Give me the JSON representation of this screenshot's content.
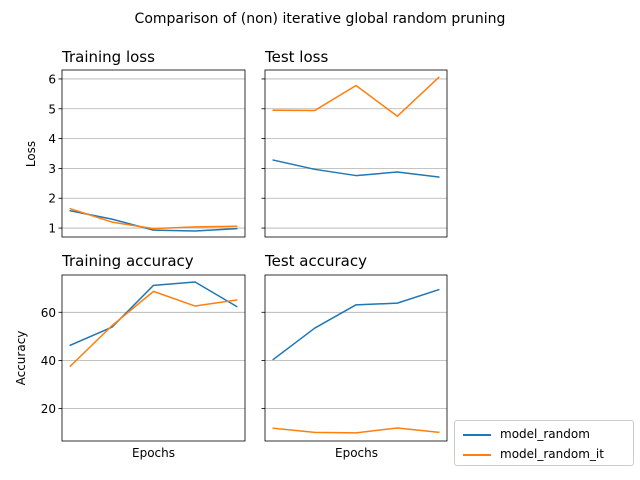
{
  "figure": {
    "title": "Comparison of (non) iterative global random pruning",
    "colors": {
      "model_random": "#1f77b4",
      "model_random_it": "#ff7f0e",
      "grid": "#b0b0b0"
    }
  },
  "legend": {
    "items": [
      {
        "label": "model_random",
        "color": "#1f77b4"
      },
      {
        "label": "model_random_it",
        "color": "#ff7f0e"
      }
    ],
    "placement": "bottom-right outside"
  },
  "chart_data": [
    {
      "type": "line",
      "title": "Training loss",
      "xlabel": "",
      "ylabel": "Loss",
      "x": [
        1,
        2,
        3,
        4,
        5
      ],
      "ylim": [
        0.7,
        6.3
      ],
      "yticks": [
        1,
        2,
        3,
        4,
        5,
        6
      ],
      "grid": "y",
      "series": [
        {
          "name": "model_random",
          "values": [
            1.58,
            1.3,
            0.93,
            0.9,
            0.98
          ]
        },
        {
          "name": "model_random_it",
          "values": [
            1.65,
            1.2,
            0.98,
            1.04,
            1.06
          ]
        }
      ]
    },
    {
      "type": "line",
      "title": "Test loss",
      "xlabel": "",
      "ylabel": "",
      "x": [
        1,
        2,
        3,
        4,
        5
      ],
      "ylim": [
        0.7,
        6.3
      ],
      "yticks": [
        1,
        2,
        3,
        4,
        5,
        6
      ],
      "grid": "y",
      "series": [
        {
          "name": "model_random",
          "values": [
            3.28,
            2.97,
            2.76,
            2.88,
            2.71
          ]
        },
        {
          "name": "model_random_it",
          "values": [
            4.95,
            4.94,
            5.78,
            4.75,
            6.05
          ]
        }
      ]
    },
    {
      "type": "line",
      "title": "Training accuracy",
      "xlabel": "Epochs",
      "ylabel": "Accuracy",
      "x": [
        1,
        2,
        3,
        4,
        5
      ],
      "ylim": [
        6.5,
        75.5
      ],
      "yticks": [
        20,
        40,
        60
      ],
      "grid": "y",
      "series": [
        {
          "name": "model_random",
          "values": [
            46.3,
            53.8,
            71.2,
            72.6,
            62.4
          ]
        },
        {
          "name": "model_random_it",
          "values": [
            37.6,
            54.4,
            68.7,
            62.6,
            65.1
          ]
        }
      ]
    },
    {
      "type": "line",
      "title": "Test accuracy",
      "xlabel": "Epochs",
      "ylabel": "",
      "x": [
        1,
        2,
        3,
        4,
        5
      ],
      "ylim": [
        6.5,
        75.5
      ],
      "yticks": [
        20,
        40,
        60
      ],
      "grid": "y",
      "series": [
        {
          "name": "model_random",
          "values": [
            40.4,
            53.4,
            63.1,
            63.8,
            69.4
          ]
        },
        {
          "name": "model_random_it",
          "values": [
            11.8,
            10.1,
            9.9,
            11.9,
            10.1
          ]
        }
      ]
    }
  ]
}
